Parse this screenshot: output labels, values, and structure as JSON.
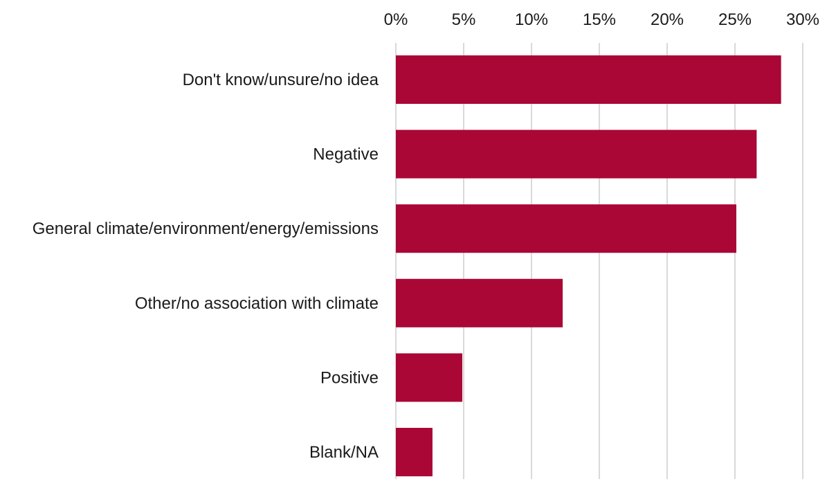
{
  "chart_data": {
    "type": "bar",
    "orientation": "horizontal",
    "categories": [
      "Don't know/unsure/no idea",
      "Negative",
      "General climate/environment/energy/emissions",
      "Other/no association with climate",
      "Positive",
      "Blank/NA"
    ],
    "values": [
      28.4,
      26.6,
      25.1,
      12.3,
      4.9,
      2.7
    ],
    "value_unit": "%",
    "xlim": [
      0,
      30
    ],
    "x_ticks": [
      0,
      5,
      10,
      15,
      20,
      25,
      30
    ],
    "x_tick_labels": [
      "0%",
      "5%",
      "10%",
      "15%",
      "20%",
      "25%",
      "30%"
    ],
    "x_axis_position": "top",
    "title": "",
    "xlabel": "",
    "ylabel": "",
    "grid": true,
    "legend": "none",
    "colors": {
      "bar": "#aa0736",
      "grid": "#d9d9d9",
      "text": "#1a1a1a"
    }
  }
}
